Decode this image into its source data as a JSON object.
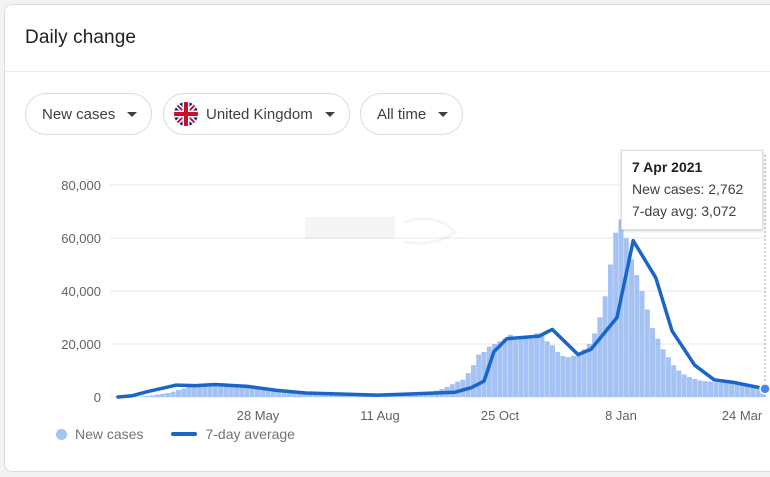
{
  "card": {
    "title": "Daily change"
  },
  "filters": {
    "metric": "New cases",
    "location": "United Kingdom",
    "range": "All time"
  },
  "tooltip": {
    "date": "7 Apr 2021",
    "new_cases": "New cases: 2,762",
    "avg": "7-day avg: 3,072"
  },
  "legend": {
    "bars": "New cases",
    "line": "7-day average"
  },
  "colors": {
    "bars": "#a4c2f4",
    "line": "#1a65c8",
    "grid": "#e8eaed"
  },
  "chart_data": {
    "type": "bar",
    "title": "",
    "xlabel": "",
    "ylabel": "",
    "ylim": [
      0,
      80000
    ],
    "yticks": [
      "0",
      "20,000",
      "40,000",
      "60,000",
      "80,000"
    ],
    "xticks": [
      "28 May",
      "11 Aug",
      "25 Oct",
      "8 Jan",
      "24 Mar"
    ],
    "grid": true,
    "legend_position": "bottom",
    "series": [
      {
        "name": "7-day average",
        "kind": "line",
        "points": [
          [
            "01 Mar",
            0
          ],
          [
            "15 Mar",
            500
          ],
          [
            "30 Mar",
            2000
          ],
          [
            "10 Apr",
            4500
          ],
          [
            "20 Apr",
            4300
          ],
          [
            "01 May",
            4700
          ],
          [
            "15 May",
            4000
          ],
          [
            "01 Jun",
            2500
          ],
          [
            "20 Jun",
            1500
          ],
          [
            "10 Jul",
            1200
          ],
          [
            "01 Aug",
            700
          ],
          [
            "15 Aug",
            1000
          ],
          [
            "01 Sep",
            1500
          ],
          [
            "20 Sep",
            1800
          ],
          [
            "01 Oct",
            3500
          ],
          [
            "10 Oct",
            6000
          ],
          [
            "20 Oct",
            17000
          ],
          [
            "01 Nov",
            22000
          ],
          [
            "20 Nov",
            23000
          ],
          [
            "25 Nov",
            25500
          ],
          [
            "10 Dec",
            16000
          ],
          [
            "20 Dec",
            18000
          ],
          [
            "01 Jan",
            30000
          ],
          [
            "08 Jan",
            59000
          ],
          [
            "20 Jan",
            45000
          ],
          [
            "01 Feb",
            25000
          ],
          [
            "15 Feb",
            12000
          ],
          [
            "01 Mar",
            6500
          ],
          [
            "20 Mar",
            5500
          ],
          [
            "07 Apr",
            3072
          ]
        ]
      },
      {
        "name": "New cases",
        "kind": "bar",
        "values": [
          0,
          0,
          0,
          100,
          200,
          400,
          600,
          900,
          1200,
          1500,
          2000,
          2600,
          3200,
          3800,
          4200,
          4500,
          4700,
          4400,
          4300,
          4600,
          4900,
          4800,
          4500,
          4300,
          4000,
          3800,
          3500,
          3200,
          2900,
          2700,
          2500,
          2300,
          2100,
          1900,
          1700,
          1600,
          1500,
          1400,
          1400,
          1300,
          1200,
          1200,
          1100,
          1000,
          900,
          800,
          700,
          700,
          800,
          900,
          1000,
          1000,
          1100,
          1200,
          1300,
          1400,
          1500,
          1600,
          1800,
          2000,
          2400,
          3000,
          3800,
          4800,
          5800,
          6500,
          9000,
          12000,
          16000,
          17000,
          19000,
          20000,
          21000,
          22000,
          23500,
          21500,
          22500,
          23000,
          22000,
          24000,
          23500,
          21000,
          19500,
          17000,
          15500,
          15000,
          15500,
          16500,
          18000,
          20000,
          24000,
          30000,
          38000,
          50000,
          62000,
          67000,
          60000,
          52000,
          46000,
          40000,
          33000,
          26000,
          22000,
          18000,
          15000,
          12000,
          10000,
          8500,
          7500,
          6800,
          6200,
          6000,
          5800,
          5600,
          5500,
          5400,
          5200,
          5000,
          4800,
          4000,
          3500,
          3000,
          2762
        ]
      }
    ]
  }
}
